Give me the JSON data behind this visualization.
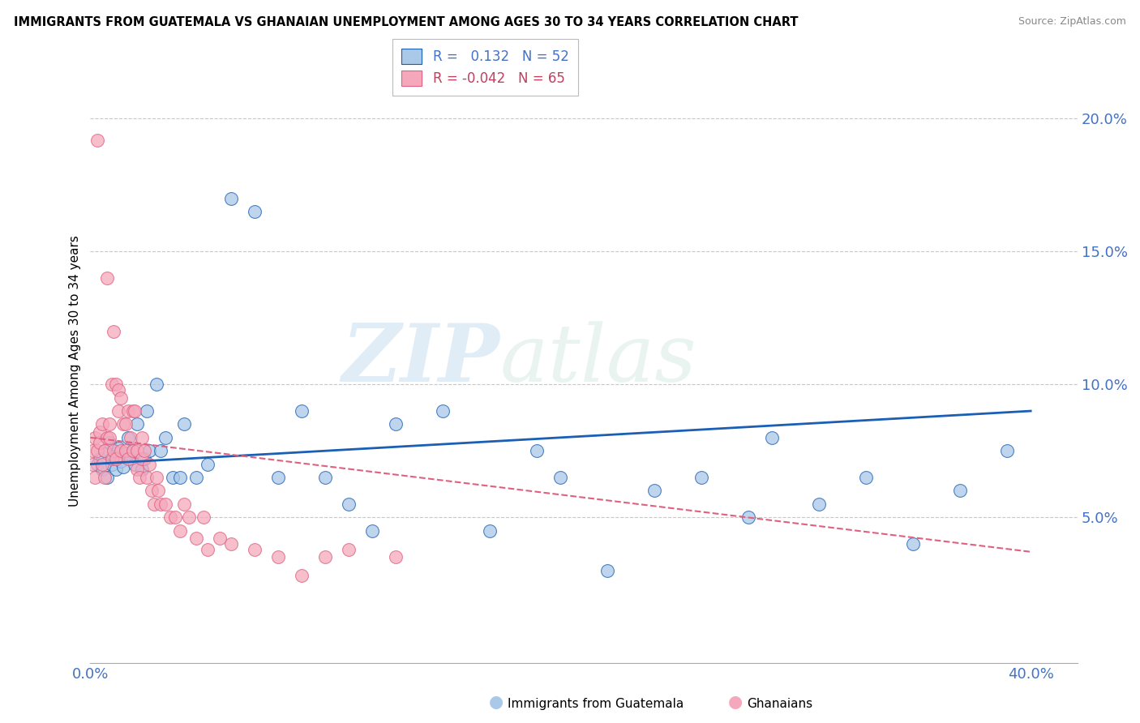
{
  "title": "IMMIGRANTS FROM GUATEMALA VS GHANAIAN UNEMPLOYMENT AMONG AGES 30 TO 34 YEARS CORRELATION CHART",
  "source": "Source: ZipAtlas.com",
  "ylabel": "Unemployment Among Ages 30 to 34 years",
  "yticks": [
    0.0,
    0.05,
    0.1,
    0.15,
    0.2
  ],
  "ytick_labels": [
    "",
    "5.0%",
    "10.0%",
    "15.0%",
    "20.0%"
  ],
  "xlim": [
    0.0,
    0.42
  ],
  "ylim": [
    -0.005,
    0.215
  ],
  "legend_blue_label": "R =   0.132   N = 52",
  "legend_pink_label": "R = -0.042   N = 65",
  "scatter_blue_color": "#aac8e8",
  "scatter_pink_color": "#f5a8bc",
  "trend_blue_color": "#1a5fb4",
  "trend_pink_color": "#e06080",
  "watermark_zip": "ZIP",
  "watermark_atlas": "atlas",
  "blue_scatter_x": [
    0.003,
    0.004,
    0.005,
    0.006,
    0.007,
    0.008,
    0.009,
    0.01,
    0.011,
    0.012,
    0.013,
    0.014,
    0.015,
    0.016,
    0.017,
    0.018,
    0.019,
    0.02,
    0.022,
    0.023,
    0.024,
    0.025,
    0.028,
    0.03,
    0.032,
    0.035,
    0.038,
    0.04,
    0.045,
    0.05,
    0.06,
    0.07,
    0.08,
    0.09,
    0.1,
    0.11,
    0.12,
    0.13,
    0.15,
    0.17,
    0.19,
    0.2,
    0.22,
    0.24,
    0.26,
    0.28,
    0.29,
    0.31,
    0.33,
    0.35,
    0.37,
    0.39
  ],
  "blue_scatter_y": [
    0.07,
    0.072,
    0.068,
    0.075,
    0.065,
    0.078,
    0.07,
    0.073,
    0.068,
    0.076,
    0.071,
    0.069,
    0.074,
    0.08,
    0.072,
    0.075,
    0.07,
    0.085,
    0.068,
    0.072,
    0.09,
    0.075,
    0.1,
    0.075,
    0.08,
    0.065,
    0.065,
    0.085,
    0.065,
    0.07,
    0.17,
    0.165,
    0.065,
    0.09,
    0.065,
    0.055,
    0.045,
    0.085,
    0.09,
    0.045,
    0.075,
    0.065,
    0.03,
    0.06,
    0.065,
    0.05,
    0.08,
    0.055,
    0.065,
    0.04,
    0.06,
    0.075
  ],
  "pink_scatter_x": [
    0.001,
    0.001,
    0.002,
    0.002,
    0.003,
    0.003,
    0.004,
    0.004,
    0.005,
    0.005,
    0.006,
    0.006,
    0.007,
    0.007,
    0.008,
    0.008,
    0.009,
    0.009,
    0.01,
    0.01,
    0.011,
    0.011,
    0.012,
    0.012,
    0.013,
    0.013,
    0.014,
    0.015,
    0.015,
    0.016,
    0.016,
    0.017,
    0.018,
    0.018,
    0.019,
    0.02,
    0.02,
    0.021,
    0.022,
    0.022,
    0.023,
    0.024,
    0.025,
    0.026,
    0.027,
    0.028,
    0.029,
    0.03,
    0.032,
    0.034,
    0.036,
    0.038,
    0.04,
    0.042,
    0.045,
    0.048,
    0.05,
    0.055,
    0.06,
    0.07,
    0.08,
    0.09,
    0.1,
    0.11,
    0.13
  ],
  "pink_scatter_y": [
    0.07,
    0.075,
    0.065,
    0.08,
    0.192,
    0.075,
    0.078,
    0.082,
    0.07,
    0.085,
    0.065,
    0.075,
    0.14,
    0.08,
    0.085,
    0.08,
    0.072,
    0.1,
    0.075,
    0.12,
    0.1,
    0.072,
    0.09,
    0.098,
    0.075,
    0.095,
    0.085,
    0.085,
    0.075,
    0.09,
    0.072,
    0.08,
    0.09,
    0.075,
    0.09,
    0.068,
    0.075,
    0.065,
    0.08,
    0.072,
    0.075,
    0.065,
    0.07,
    0.06,
    0.055,
    0.065,
    0.06,
    0.055,
    0.055,
    0.05,
    0.05,
    0.045,
    0.055,
    0.05,
    0.042,
    0.05,
    0.038,
    0.042,
    0.04,
    0.038,
    0.035,
    0.028,
    0.035,
    0.038,
    0.035
  ],
  "trend_blue_x0": 0.0,
  "trend_blue_y0": 0.07,
  "trend_blue_x1": 0.4,
  "trend_blue_y1": 0.09,
  "trend_pink_x0": 0.0,
  "trend_pink_y0": 0.08,
  "trend_pink_x1": 0.4,
  "trend_pink_y1": 0.037
}
